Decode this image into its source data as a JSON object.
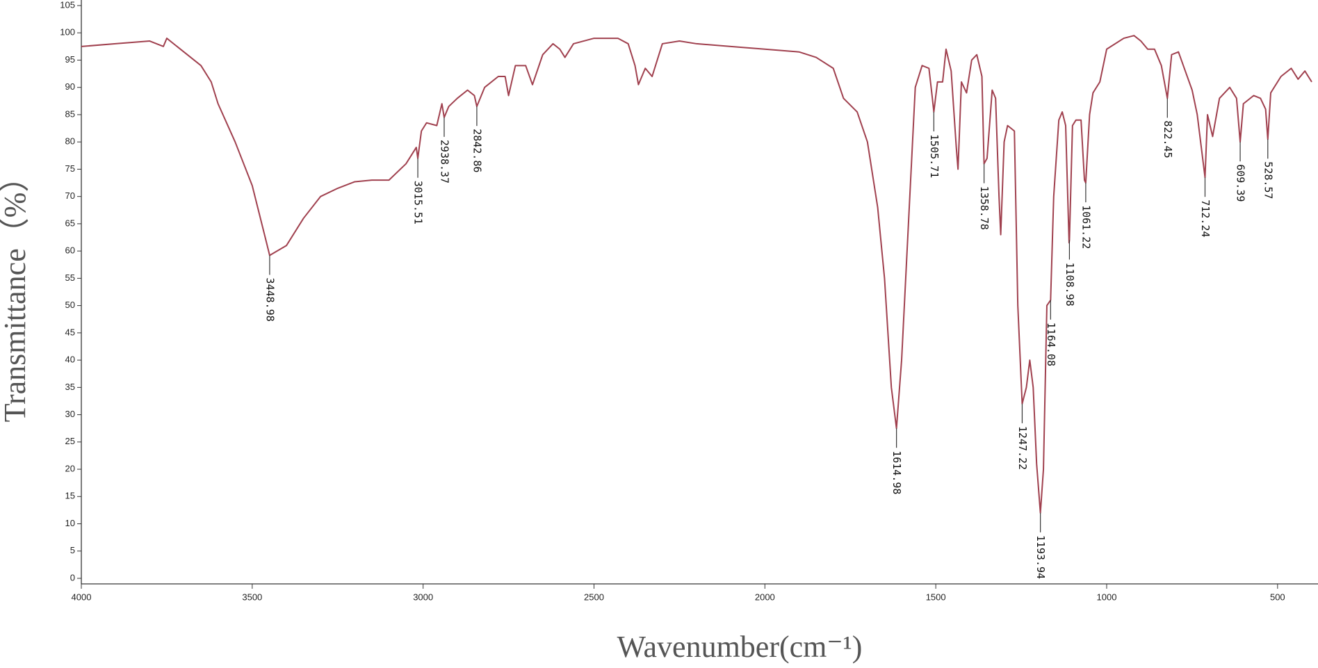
{
  "chart_data": {
    "type": "line",
    "x_label": "Wavenumber(cm⁻¹)",
    "y_label": "Transmittance（%）",
    "color": "#a0404e",
    "xlim": [
      4000,
      400
    ],
    "xticks": [
      4000,
      3500,
      3000,
      2500,
      2000,
      1500,
      1000,
      500
    ],
    "ylim": [
      0,
      105
    ],
    "yticks": [
      0,
      5,
      10,
      15,
      20,
      25,
      30,
      35,
      40,
      45,
      50,
      55,
      60,
      65,
      70,
      75,
      80,
      85,
      90,
      95,
      100,
      105
    ],
    "x": [
      4000,
      3900,
      3800,
      3760,
      3750,
      3700,
      3650,
      3620,
      3600,
      3550,
      3500,
      3460,
      3448.98,
      3400,
      3350,
      3300,
      3250,
      3200,
      3150,
      3100,
      3050,
      3020,
      3015.51,
      3005,
      2990,
      2960,
      2945,
      2938.37,
      2925,
      2900,
      2870,
      2850,
      2842.86,
      2820,
      2780,
      2760,
      2750,
      2730,
      2700,
      2680,
      2650,
      2620,
      2600,
      2585,
      2560,
      2500,
      2430,
      2400,
      2380,
      2370,
      2350,
      2330,
      2300,
      2250,
      2200,
      2100,
      2000,
      1900,
      1850,
      1800,
      1770,
      1730,
      1700,
      1670,
      1650,
      1630,
      1614.98,
      1600,
      1580,
      1560,
      1540,
      1520,
      1510,
      1505.71,
      1495,
      1480,
      1470,
      1455,
      1440,
      1435,
      1425,
      1410,
      1395,
      1380,
      1365,
      1358.78,
      1350,
      1335,
      1325,
      1315,
      1310,
      1300,
      1290,
      1270,
      1260,
      1247.22,
      1235,
      1225,
      1215,
      1205,
      1193.94,
      1185,
      1175,
      1164.08,
      1155,
      1140,
      1130,
      1120,
      1110,
      1108.98,
      1100,
      1090,
      1075,
      1065,
      1061.22,
      1050,
      1040,
      1020,
      1000,
      950,
      920,
      900,
      880,
      860,
      840,
      822.45,
      810,
      790,
      770,
      750,
      735,
      712.24,
      705,
      690,
      670,
      640,
      620,
      609.39,
      600,
      570,
      550,
      535,
      528.57,
      520,
      490,
      460,
      440,
      420,
      400
    ],
    "values": [
      97.5,
      98,
      98.5,
      97.5,
      99,
      96.5,
      94,
      91,
      87,
      80,
      72,
      62,
      59.2,
      61,
      66,
      70,
      71.5,
      72.7,
      73,
      73,
      76,
      79,
      77,
      82,
      83.5,
      83,
      87,
      84.5,
      86.5,
      88,
      89.5,
      88.5,
      86.5,
      90,
      92,
      92,
      88.5,
      94,
      94,
      90.5,
      96,
      98,
      97,
      95.5,
      98,
      99,
      99,
      98,
      94,
      90.5,
      93.5,
      92,
      98,
      98.5,
      98,
      97.5,
      97,
      96.5,
      95.5,
      93.5,
      88,
      85.5,
      80,
      68,
      55,
      35,
      27.5,
      40,
      65,
      90,
      94,
      93.5,
      88,
      85.5,
      91,
      91,
      97,
      93,
      79,
      75,
      91,
      89,
      95,
      96,
      92,
      76,
      77,
      89.5,
      88,
      70,
      63,
      80,
      83,
      82,
      50,
      32,
      35,
      40,
      35,
      21,
      12,
      20,
      50,
      51,
      70,
      84,
      85.5,
      83,
      61.5,
      62,
      83,
      84,
      84,
      73,
      72.5,
      85,
      89,
      91,
      97,
      99,
      99.5,
      98.5,
      97,
      97,
      94,
      88,
      96,
      96.5,
      93,
      89.5,
      85,
      73.5,
      85,
      81,
      88,
      90,
      88,
      80,
      87,
      88.5,
      88,
      86,
      80.5,
      89,
      92,
      93.5,
      91.5,
      93,
      91
    ],
    "annotations": [
      3448.98,
      3015.51,
      2938.37,
      2842.86,
      1614.98,
      1505.71,
      1358.78,
      1247.22,
      1193.94,
      1164.08,
      1108.98,
      1061.22,
      822.45,
      712.24,
      609.39,
      528.57
    ]
  }
}
